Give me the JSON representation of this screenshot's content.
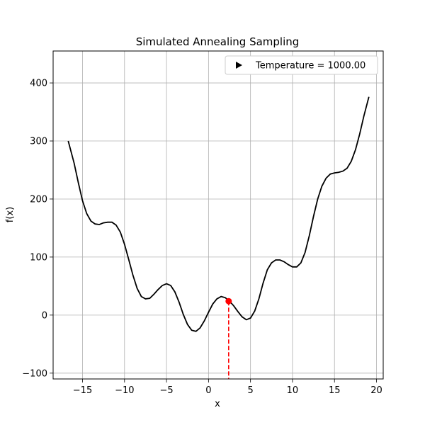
{
  "chart_data": {
    "type": "line",
    "title": "Simulated Annealing Sampling",
    "xlabel": "x",
    "ylabel": "f(x)",
    "xlim": [
      -18.5,
      20.8
    ],
    "ylim": [
      -110,
      455
    ],
    "xticks": [
      -15,
      -10,
      -5,
      0,
      5,
      10,
      15,
      20
    ],
    "xtick_labels": [
      "−15",
      "−10",
      "−5",
      "0",
      "5",
      "10",
      "15",
      "20"
    ],
    "yticks": [
      -100,
      0,
      100,
      200,
      300,
      400
    ],
    "ytick_labels": [
      "−100",
      "0",
      "100",
      "200",
      "300",
      "400"
    ],
    "grid": true,
    "legend": {
      "placement": "top-right",
      "label": "Temperature = 1000.00",
      "marker": "right-triangle"
    },
    "curve": {
      "color": "#000000",
      "points": [
        [
          -16.7,
          300
        ],
        [
          -16.0,
          262
        ],
        [
          -15.5,
          228
        ],
        [
          -15.0,
          197
        ],
        [
          -14.5,
          175
        ],
        [
          -14.0,
          162
        ],
        [
          -13.5,
          157
        ],
        [
          -13.0,
          156
        ],
        [
          -12.5,
          159
        ],
        [
          -12.0,
          160
        ],
        [
          -11.5,
          160
        ],
        [
          -11.0,
          155
        ],
        [
          -10.5,
          143
        ],
        [
          -10.0,
          122
        ],
        [
          -9.5,
          96
        ],
        [
          -9.0,
          69
        ],
        [
          -8.5,
          46
        ],
        [
          -8.0,
          32
        ],
        [
          -7.5,
          28
        ],
        [
          -7.0,
          29
        ],
        [
          -6.5,
          36
        ],
        [
          -6.0,
          44
        ],
        [
          -5.5,
          51
        ],
        [
          -5.0,
          54
        ],
        [
          -4.5,
          51
        ],
        [
          -4.0,
          40
        ],
        [
          -3.5,
          22
        ],
        [
          -3.0,
          1
        ],
        [
          -2.5,
          -16
        ],
        [
          -2.0,
          -26
        ],
        [
          -1.5,
          -28
        ],
        [
          -1.0,
          -22
        ],
        [
          -0.5,
          -10
        ],
        [
          0.0,
          5
        ],
        [
          0.5,
          19
        ],
        [
          1.0,
          28
        ],
        [
          1.5,
          32
        ],
        [
          2.0,
          30
        ],
        [
          2.5,
          24
        ],
        [
          3.0,
          16
        ],
        [
          3.5,
          6
        ],
        [
          4.0,
          -3
        ],
        [
          4.5,
          -8
        ],
        [
          5.0,
          -5
        ],
        [
          5.5,
          7
        ],
        [
          6.0,
          28
        ],
        [
          6.5,
          55
        ],
        [
          7.0,
          78
        ],
        [
          7.5,
          90
        ],
        [
          8.0,
          95
        ],
        [
          8.5,
          95
        ],
        [
          9.0,
          92
        ],
        [
          9.5,
          87
        ],
        [
          10.0,
          83
        ],
        [
          10.5,
          83
        ],
        [
          11.0,
          90
        ],
        [
          11.5,
          108
        ],
        [
          12.0,
          137
        ],
        [
          12.5,
          170
        ],
        [
          13.0,
          200
        ],
        [
          13.5,
          222
        ],
        [
          14.0,
          236
        ],
        [
          14.5,
          243
        ],
        [
          15.0,
          245
        ],
        [
          15.5,
          246
        ],
        [
          16.0,
          248
        ],
        [
          16.5,
          253
        ],
        [
          17.0,
          265
        ],
        [
          17.5,
          285
        ],
        [
          18.0,
          312
        ],
        [
          18.5,
          343
        ],
        [
          19.1,
          376
        ]
      ]
    },
    "sample": {
      "x": 2.4,
      "y": 24,
      "color": "#ff0000"
    }
  }
}
